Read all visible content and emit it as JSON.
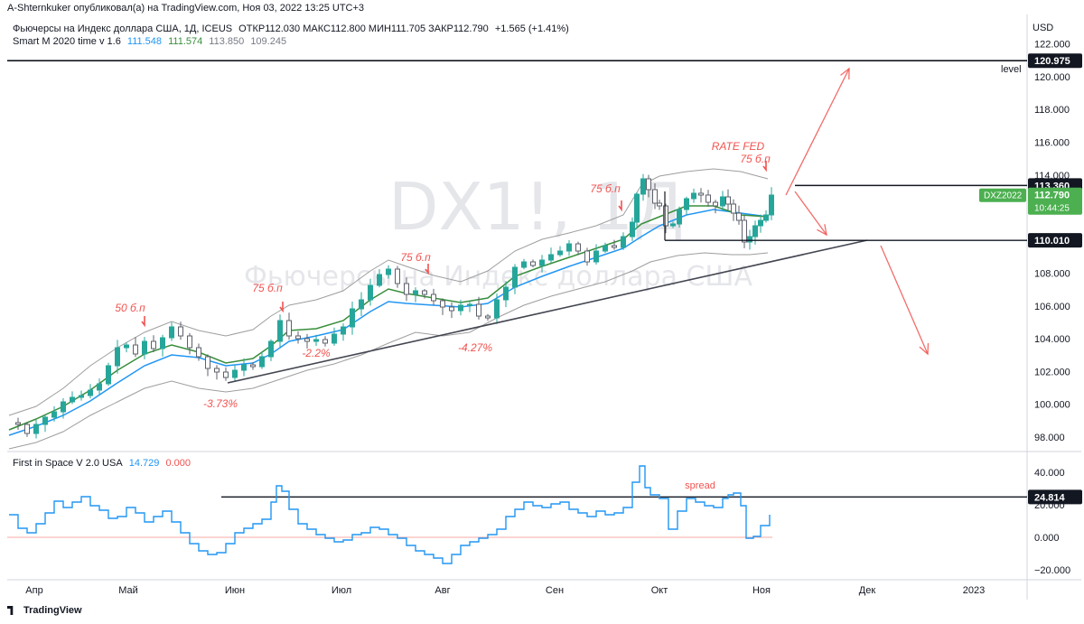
{
  "publisher_line": "A-Shternkuker опубликовал(а) на TradingView.com, Ноя 03, 2022 13:25 UTC+3",
  "header": {
    "instrument": "Фьючерсы на Индекс доллара США, 1Д, ICEUS",
    "ohlc": "ОТКР112.030  МАКС112.800  МИН111.705  ЗАКР112.790",
    "change": "+1.565 (+1.41%)",
    "indicator_name": "Smart M 2020 time v 1.6",
    "indicator_values": [
      {
        "text": "111.548",
        "color": "#2196f3"
      },
      {
        "text": "111.574",
        "color": "#388e3c"
      },
      {
        "text": "113.850",
        "color": "#787b86"
      },
      {
        "text": "109.245",
        "color": "#787b86"
      }
    ]
  },
  "watermark": {
    "symbol": "DX1!, 1Д",
    "description": "Фьючерсы на Индекс доллара США"
  },
  "currency": "USD",
  "colors": {
    "up": "#26a69a",
    "down": "#787b86",
    "accent_red": "#f05350",
    "ema_blue": "#2196f3",
    "ema_green": "#388e3c",
    "envelope": "#9e9e9e",
    "osc": "#2196f3"
  },
  "chart_data": [
    {
      "type": "candlestick",
      "title": "Фьючерсы на Индекс доллара США, 1Д, ICEUS",
      "x_ticks": [
        "Апр",
        "Май",
        "Июн",
        "Июл",
        "Авг",
        "Сен",
        "Окт",
        "Ноя",
        "Дек",
        "2023"
      ],
      "y_ticks": [
        "122.000",
        "120.000",
        "118.000",
        "116.000",
        "114.000",
        "112.000",
        "110.000",
        "108.000",
        "106.000",
        "104.000",
        "102.000",
        "100.000",
        "98.000"
      ],
      "ylim": [
        97.3,
        123.4
      ],
      "last_close": 112.79,
      "price_labels": [
        {
          "text": "120.975",
          "value": 120.975,
          "kind": "level"
        },
        {
          "text": "113.360",
          "value": 113.36,
          "kind": "level"
        },
        {
          "text": "110.010",
          "value": 110.01,
          "kind": "level"
        },
        {
          "text": "112.790",
          "value": 112.79,
          "kind": "last",
          "symbol": "DXZ2022",
          "countdown": "10:44:25"
        }
      ],
      "level_label": "level",
      "annotations": [
        "50 б.п",
        "75 б.п",
        "75 б.п",
        "75 б.п",
        "RATE FED",
        "75 б.п",
        "-3.73%",
        "-2.2%",
        "-4.27%"
      ],
      "ema_fast_last": 111.548,
      "ema_slow_last": 111.574,
      "envelope_upper_last": 113.85,
      "envelope_lower_last": 109.245
    },
    {
      "type": "line",
      "title": "First in Space V 2.0 USA",
      "values_text": [
        {
          "text": "14.729",
          "color": "#2196f3"
        },
        {
          "text": "0.000",
          "color": "#f05350"
        }
      ],
      "y_ticks": [
        "40.000",
        "20.000",
        "0.000",
        "−20.000"
      ],
      "ylim": [
        -23,
        46
      ],
      "level": {
        "text": "24.814",
        "value": 24.814
      },
      "annotation": "spread",
      "last_value": 14.729
    }
  ],
  "footer": {
    "brand": "TradingView"
  }
}
